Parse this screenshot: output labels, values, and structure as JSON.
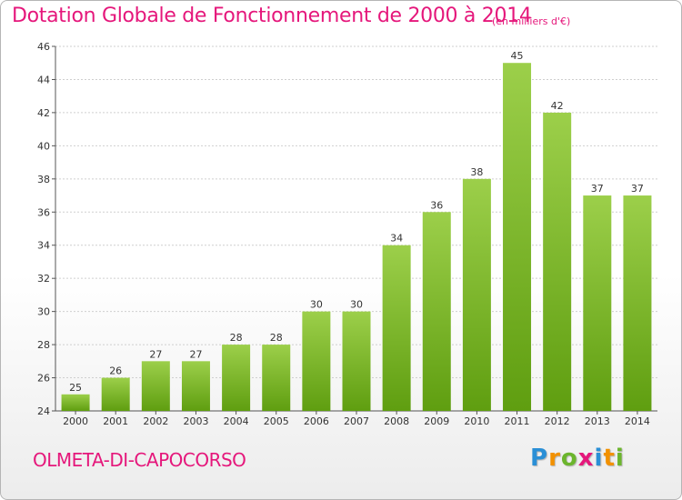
{
  "header": {
    "title": "Dotation Globale de Fonctionnement de 2000 à 2014",
    "unit": "(en milliers d'€)"
  },
  "footer": {
    "commune": "OLMETA-DI-CAPOCORSO",
    "logo_letters": [
      {
        "ch": "P",
        "color": "#2a8fd6"
      },
      {
        "ch": "r",
        "color": "#f29100"
      },
      {
        "ch": "o",
        "color": "#6cb52d"
      },
      {
        "ch": "x",
        "color": "#e5177b"
      },
      {
        "ch": "i",
        "color": "#2a8fd6"
      },
      {
        "ch": "t",
        "color": "#f29100"
      },
      {
        "ch": "i",
        "color": "#6cb52d"
      }
    ]
  },
  "colors": {
    "bar_light": "#9ccf4a",
    "bar_dark": "#5f9e10",
    "accent": "#e5177b"
  },
  "chart_data": {
    "type": "bar",
    "categories": [
      "2000",
      "2001",
      "2002",
      "2003",
      "2004",
      "2005",
      "2006",
      "2007",
      "2008",
      "2009",
      "2010",
      "2011",
      "2012",
      "2013",
      "2014"
    ],
    "values": [
      25,
      26,
      27,
      27,
      28,
      28,
      30,
      30,
      34,
      36,
      38,
      45,
      42,
      37,
      37
    ],
    "ylim": [
      24,
      46
    ],
    "yticks": [
      24,
      26,
      28,
      30,
      32,
      34,
      36,
      38,
      40,
      42,
      44,
      46
    ],
    "grid": true,
    "title": "Dotation Globale de Fonctionnement de 2000 à 2014",
    "ylabel": "(en milliers d'€)"
  }
}
